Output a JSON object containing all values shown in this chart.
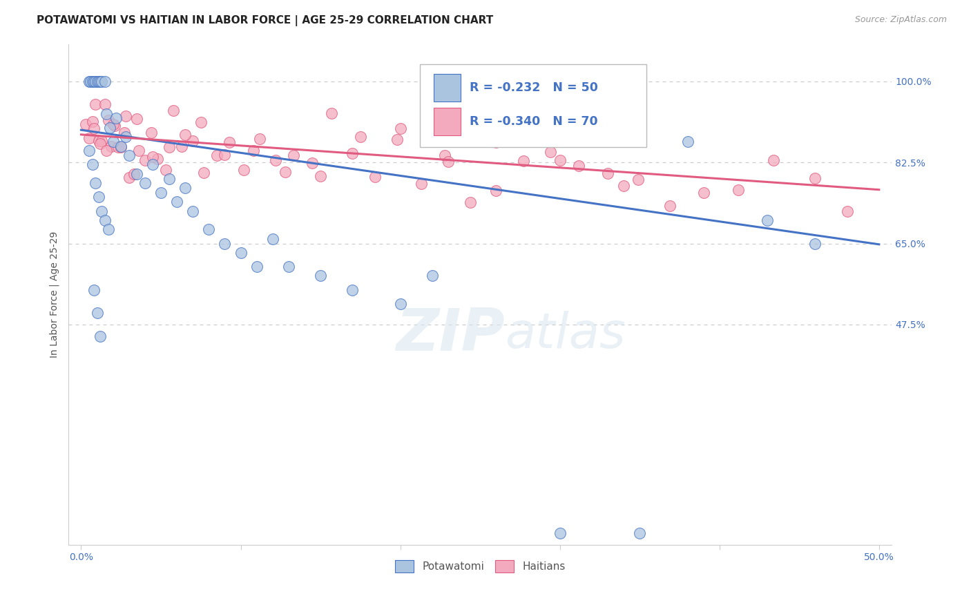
{
  "title": "POTAWATOMI VS HAITIAN IN LABOR FORCE | AGE 25-29 CORRELATION CHART",
  "source_text": "Source: ZipAtlas.com",
  "ylabel": "In Labor Force | Age 25-29",
  "x_min": 0.0,
  "x_max": 0.5,
  "y_min": 0.0,
  "y_max": 1.08,
  "x_tick_positions": [
    0.0,
    0.1,
    0.2,
    0.3,
    0.4,
    0.5
  ],
  "x_tick_labels": [
    "0.0%",
    "",
    "",
    "",
    "",
    "50.0%"
  ],
  "y_tick_positions": [
    0.475,
    0.65,
    0.825,
    1.0
  ],
  "y_tick_labels": [
    "47.5%",
    "65.0%",
    "82.5%",
    "100.0%"
  ],
  "potawatomi_color": "#aac4e0",
  "haitian_color": "#f4aabe",
  "potawatomi_line_color": "#4472c4",
  "haitian_line_color": "#e05b7f",
  "legend_r_potawatomi": "R = -0.232",
  "legend_n_potawatomi": "N = 50",
  "legend_r_haitian": "R = -0.340",
  "legend_n_haitian": "N = 70",
  "watermark_zip": "ZIP",
  "watermark_atlas": "atlas",
  "grid_color": "#cccccc",
  "background_color": "#ffffff",
  "title_fontsize": 11,
  "label_fontsize": 10,
  "tick_fontsize": 10,
  "pot_trend_x0": 0.0,
  "pot_trend_y0": 0.895,
  "pot_trend_x1": 0.5,
  "pot_trend_y1": 0.648,
  "hai_trend_x0": 0.0,
  "hai_trend_y0": 0.885,
  "hai_trend_x1": 0.5,
  "hai_trend_y1": 0.766
}
